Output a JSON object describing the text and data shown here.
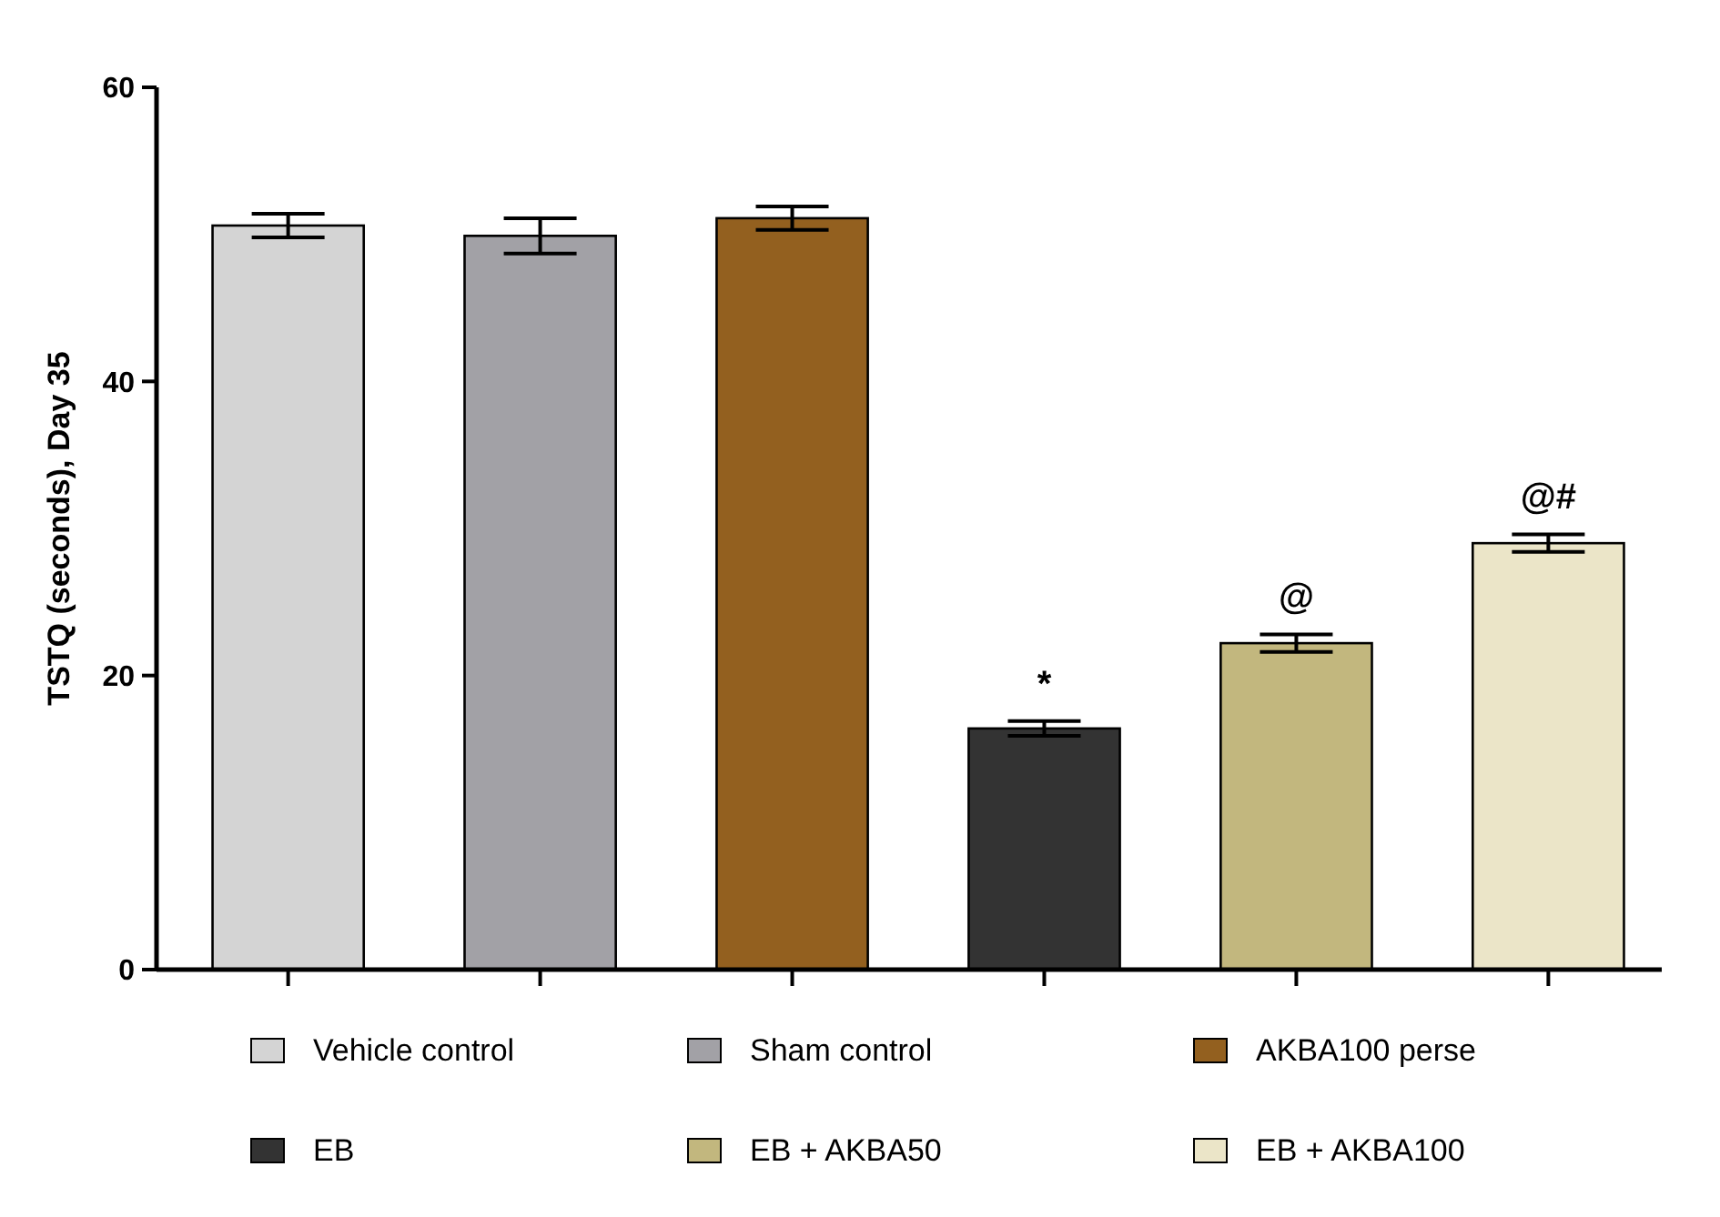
{
  "chart_data": {
    "type": "bar",
    "ylabel": "TSTQ (seconds), Day 35",
    "categories": [
      null,
      null,
      null,
      null,
      null,
      null
    ],
    "series": [
      {
        "name": "Vehicle control",
        "color": "#d4d4d4",
        "values": [
          50.6,
          null,
          null,
          null,
          null,
          null
        ],
        "errors": [
          0.8,
          null,
          null,
          null,
          null,
          null
        ]
      },
      {
        "name": "Sham control",
        "color": "#a2a1a6",
        "values": [
          null,
          49.9,
          null,
          null,
          null,
          null
        ],
        "errors": [
          null,
          1.2,
          null,
          null,
          null,
          null
        ]
      },
      {
        "name": "AKBA100 perse",
        "color": "#93601f",
        "values": [
          null,
          null,
          51.1,
          null,
          null,
          null
        ],
        "errors": [
          null,
          null,
          0.8,
          null,
          null,
          null
        ]
      },
      {
        "name": "EB",
        "color": "#333333",
        "values": [
          null,
          null,
          null,
          16.4,
          null,
          null
        ],
        "errors": [
          null,
          null,
          null,
          0.5,
          null,
          null
        ]
      },
      {
        "name": "EB + AKBA50",
        "color": "#c2b77e",
        "values": [
          null,
          null,
          null,
          null,
          22.2,
          null
        ],
        "errors": [
          null,
          null,
          null,
          null,
          0.6,
          null
        ]
      },
      {
        "name": "EB + AKBA100",
        "color": "#ebe5c8",
        "values": [
          null,
          null,
          null,
          null,
          null,
          29.0
        ],
        "errors": [
          null,
          null,
          null,
          null,
          null,
          0.6
        ]
      }
    ],
    "ylim": [
      0,
      60
    ],
    "yticks": [
      0,
      20,
      40,
      60
    ],
    "tick_labels": "y",
    "legend": "bottom",
    "annotations": [
      "*",
      "@",
      "@#"
    ]
  }
}
